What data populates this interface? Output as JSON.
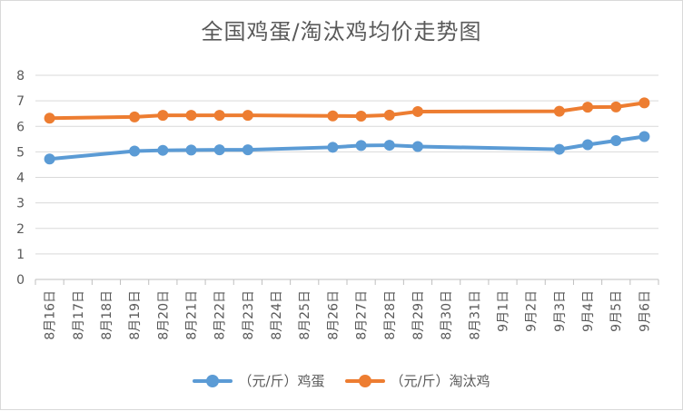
{
  "chart_data": {
    "type": "line",
    "title": "全国鸡蛋/淘汰鸡均价走势图",
    "categories": [
      "8月16日",
      "8月17日",
      "8月18日",
      "8月19日",
      "8月20日",
      "8月21日",
      "8月22日",
      "8月23日",
      "8月24日",
      "8月25日",
      "8月26日",
      "8月27日",
      "8月28日",
      "8月29日",
      "8月30日",
      "8月31日",
      "9月1日",
      "9月2日",
      "9月3日",
      "9月4日",
      "9月5日",
      "9月6日"
    ],
    "ylim": [
      0,
      8
    ],
    "yticks": [
      0,
      1,
      2,
      3,
      4,
      5,
      6,
      7,
      8
    ],
    "grid": true,
    "legend_position": "bottom",
    "series": [
      {
        "name": "（元/斤）鸡蛋",
        "color": "#5b9bd5",
        "values": [
          4.72,
          null,
          null,
          5.03,
          5.06,
          5.07,
          5.08,
          5.08,
          null,
          null,
          5.18,
          5.25,
          5.26,
          5.21,
          null,
          null,
          null,
          null,
          5.1,
          5.28,
          5.44,
          5.6
        ]
      },
      {
        "name": "（元/斤）淘汰鸡",
        "color": "#ed7d31",
        "values": [
          6.32,
          null,
          null,
          6.37,
          6.43,
          6.43,
          6.43,
          6.43,
          null,
          null,
          6.41,
          6.4,
          6.44,
          6.58,
          null,
          null,
          null,
          null,
          6.59,
          6.75,
          6.76,
          6.92
        ]
      }
    ]
  }
}
